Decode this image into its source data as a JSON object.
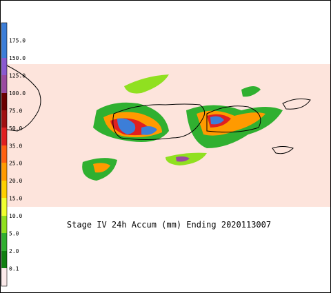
{
  "title": "Stage IV 24h Accum (mm) Ending 2020113007",
  "colorbar": {
    "labels": [
      "175.0",
      "150.0",
      "125.0",
      "100.0",
      "75.0",
      "50.0",
      "35.0",
      "25.0",
      "20.0",
      "15.0",
      "10.0",
      "5.0",
      "2.0",
      "0.1"
    ]
  }
}
